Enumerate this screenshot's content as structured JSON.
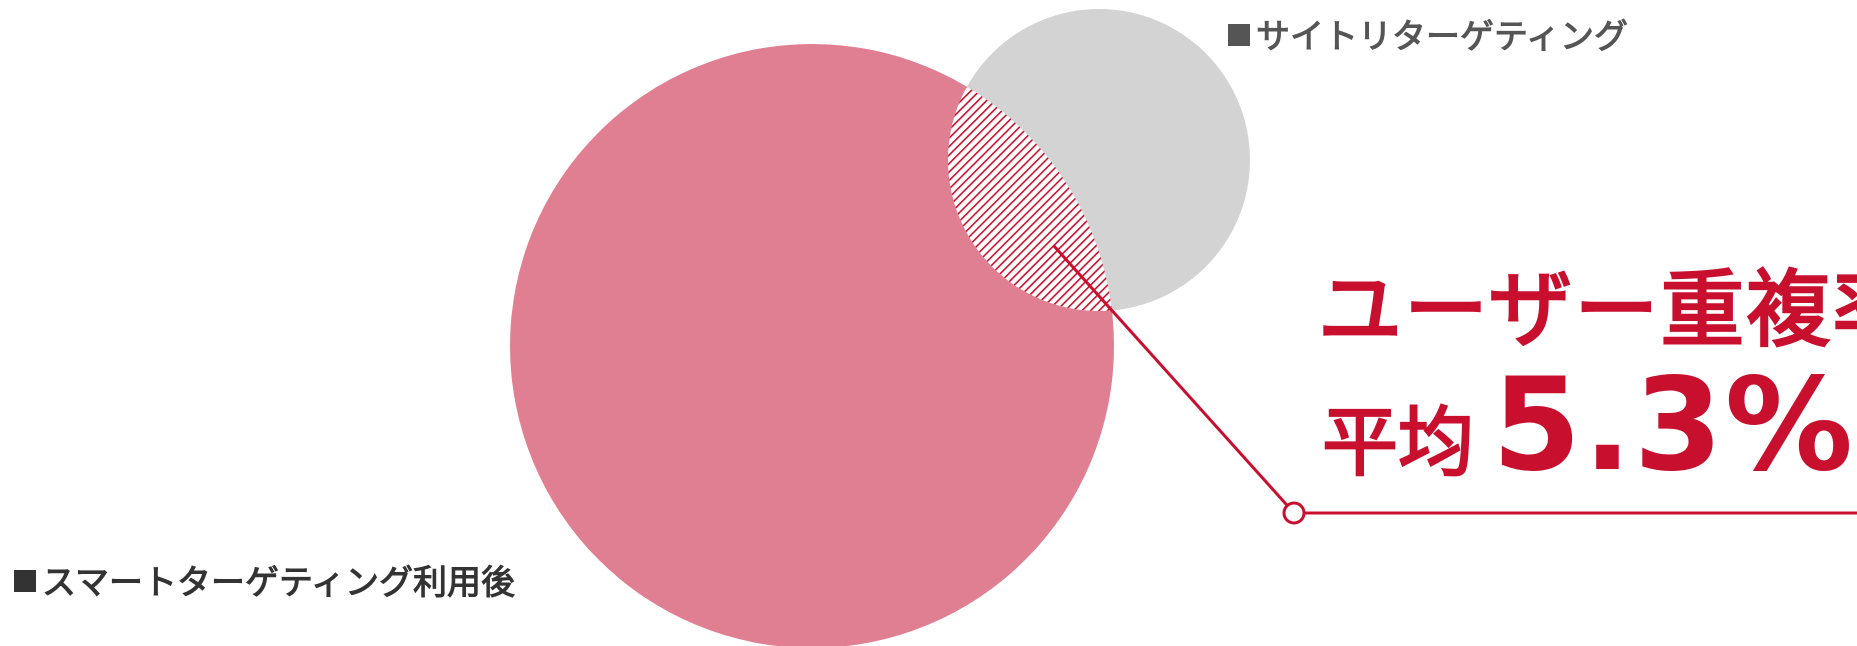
{
  "colors": {
    "smart_circle": "#e07f92",
    "site_circle": "#d3d3d3",
    "overlap_hatch": "#c8102e",
    "accent": "#c8102e",
    "legend_site": "#555555",
    "legend_smart": "#333333"
  },
  "sets": {
    "site_retargeting": {
      "label": "サイトリターゲティング",
      "marker": "■"
    },
    "smart_targeting": {
      "label": "スマートターゲティング利用後",
      "marker": "■"
    }
  },
  "overlap": {
    "title": "ユーザー重複率",
    "prefix": "平均",
    "value": "5.3%",
    "percent": 5.3
  }
}
